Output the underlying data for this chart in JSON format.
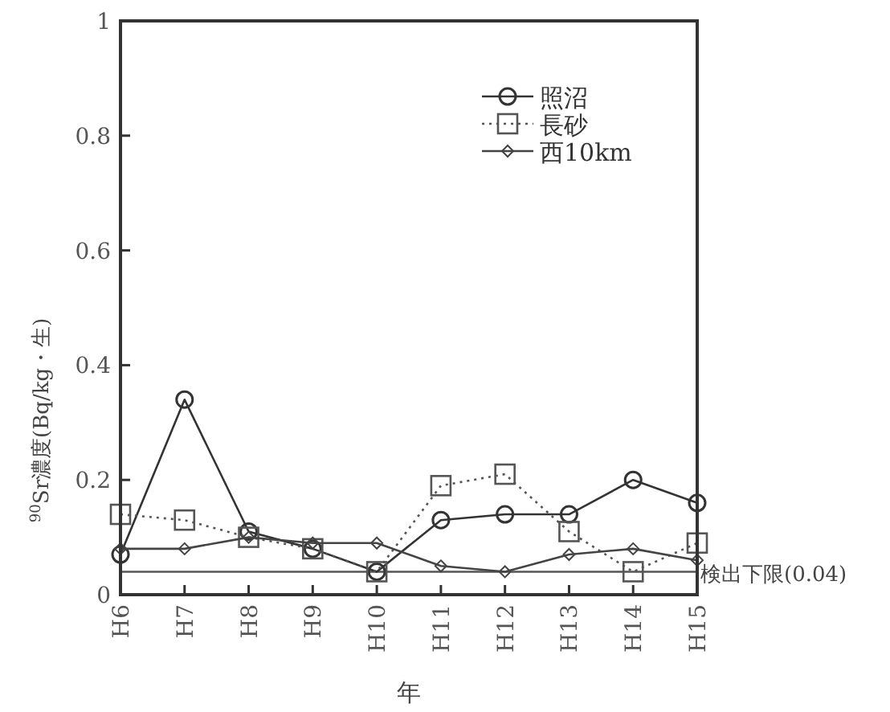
{
  "chart_data": {
    "type": "line",
    "xlabel": "年",
    "ylabel": "$^{90}$Sr濃度(Bq/kg・生)",
    "categories": [
      "H6",
      "H7",
      "H8",
      "H9",
      "H10",
      "H11",
      "H12",
      "H13",
      "H14",
      "H15"
    ],
    "series": [
      {
        "name": "照沼",
        "color": "#333333",
        "marker": "circle",
        "line_style": "solid",
        "values": [
          0.07,
          0.34,
          0.11,
          0.08,
          0.04,
          0.13,
          0.14,
          0.14,
          0.2,
          0.16
        ]
      },
      {
        "name": "長砂",
        "color": "#555555",
        "marker": "square",
        "line_style": "dotted",
        "values": [
          0.14,
          0.13,
          0.1,
          0.08,
          0.04,
          0.19,
          0.21,
          0.11,
          0.04,
          0.09
        ]
      },
      {
        "name": "西10km",
        "color": "#444444",
        "marker": "diamond",
        "line_style": "solid",
        "values": [
          0.08,
          0.08,
          0.1,
          0.09,
          0.09,
          0.05,
          0.04,
          0.07,
          0.08,
          0.06
        ]
      }
    ],
    "ylim": [
      0,
      1
    ],
    "yticks": [
      0,
      0.2,
      0.4,
      0.6,
      0.8,
      1
    ],
    "ref_lines": [
      {
        "axis": "y",
        "value": 0.04,
        "label": "検出下限(0.04)",
        "color": "#555555",
        "line_style": "solid"
      }
    ],
    "grid": false,
    "legend": "top right"
  }
}
